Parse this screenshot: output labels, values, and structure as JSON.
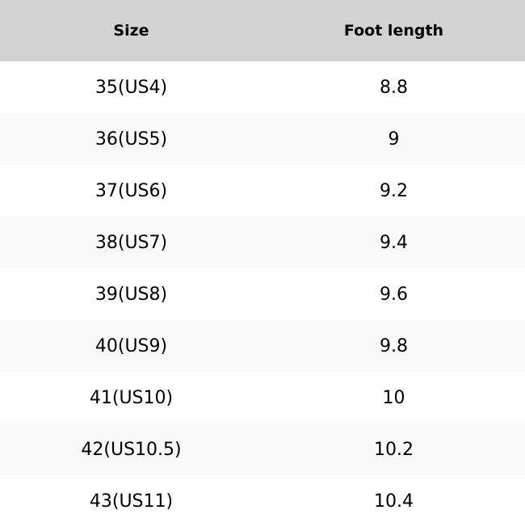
{
  "table": {
    "headers": [
      "Size",
      "Foot length"
    ],
    "rows": [
      [
        "35(US4)",
        "8.8"
      ],
      [
        "36(US5)",
        "9"
      ],
      [
        "37(US6)",
        "9.2"
      ],
      [
        "38(US7)",
        "9.4"
      ],
      [
        "39(US8)",
        "9.6"
      ],
      [
        "40(US9)",
        "9.8"
      ],
      [
        "41(US10)",
        "10"
      ],
      [
        "42(US10.5)",
        "10.2"
      ],
      [
        "43(US11)",
        "10.4"
      ]
    ]
  },
  "colors": {
    "header_bg": "#d3d3d3",
    "row_alt_bg": "#f9f9f9",
    "row_bg": "#ffffff"
  }
}
